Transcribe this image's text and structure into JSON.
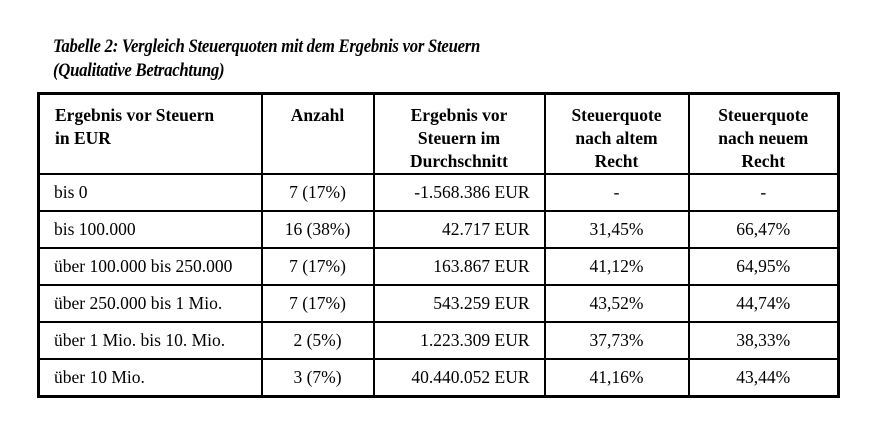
{
  "caption": {
    "line1": "Tabelle 2: Vergleich Steuerquoten mit dem Ergebnis vor Steuern",
    "line2": "(Qualitative Betrachtung)"
  },
  "table": {
    "headers": [
      [
        "Ergebnis vor Steuern",
        "in EUR"
      ],
      [
        "Anzahl"
      ],
      [
        "Ergebnis vor",
        "Steuern im",
        "Durchschnitt"
      ],
      [
        "Steuerquote",
        "nach altem",
        "Recht"
      ],
      [
        "Steuerquote",
        "nach neuem",
        "Recht"
      ]
    ],
    "rows": [
      {
        "range": "bis 0",
        "anzahl": "7 (17%)",
        "ergebnis": "-1.568.386 EUR",
        "alt": "-",
        "neu": "-"
      },
      {
        "range": "bis 100.000",
        "anzahl": "16 (38%)",
        "ergebnis": "42.717 EUR",
        "alt": "31,45%",
        "neu": "66,47%"
      },
      {
        "range": "über 100.000 bis 250.000",
        "anzahl": "7 (17%)",
        "ergebnis": "163.867 EUR",
        "alt": "41,12%",
        "neu": "64,95%"
      },
      {
        "range": "über 250.000 bis 1 Mio.",
        "anzahl": "7 (17%)",
        "ergebnis": "543.259 EUR",
        "alt": "43,52%",
        "neu": "44,74%"
      },
      {
        "range": "über 1 Mio. bis 10. Mio.",
        "anzahl": "2 (5%)",
        "ergebnis": "1.223.309 EUR",
        "alt": "37,73%",
        "neu": "38,33%"
      },
      {
        "range": "über 10 Mio.",
        "anzahl": "3 (7%)",
        "ergebnis": "40.440.052 EUR",
        "alt": "41,16%",
        "neu": "43,44%"
      }
    ]
  }
}
